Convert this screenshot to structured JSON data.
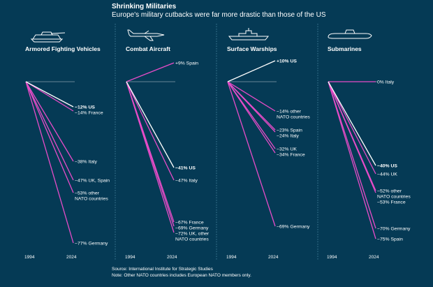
{
  "header": {
    "title": "Shrinking Militaries",
    "subtitle": "Europe's military cutbacks were far more drastic than those of the US"
  },
  "footer": {
    "source": "Source: International Institute for Strategic Studies",
    "note": "Note: Other NATO countries includes European NATO members only."
  },
  "colors": {
    "background": "#053a55",
    "us_line": "#ffffff",
    "europe_line": "#e74cc8",
    "baseline": "#8aa0ad",
    "divider": "#4d8aa5"
  },
  "icons": [
    "tank-icon",
    "aircraft-icon",
    "warship-icon",
    "submarine-icon"
  ],
  "chart_data": [
    {
      "type": "line",
      "title": "Armored Fighting Vehicles",
      "icon": "tank-icon",
      "x": [
        "1994",
        "2024"
      ],
      "unit": "% change 1994-2024",
      "series": [
        {
          "name": "US",
          "value": -12,
          "label": "−12% US",
          "highlight": true
        },
        {
          "name": "France",
          "value": -14,
          "label": "−14% France"
        },
        {
          "name": "Italy",
          "value": -38,
          "label": "−38% Italy"
        },
        {
          "name": "UK, Spain",
          "value": -47,
          "label": "−47% UK, Spain"
        },
        {
          "name": "other NATO countries",
          "value": -53,
          "label": "−53% other\nNATO countries"
        },
        {
          "name": "Germany",
          "value": -77,
          "label": "−77% Germany"
        }
      ]
    },
    {
      "type": "line",
      "title": "Combat Aircraft",
      "icon": "aircraft-icon",
      "x": [
        "1994",
        "2024"
      ],
      "unit": "% change 1994-2024",
      "series": [
        {
          "name": "Spain",
          "value": 9,
          "label": "+9% Spain"
        },
        {
          "name": "US",
          "value": -41,
          "label": "−41% US",
          "highlight": true
        },
        {
          "name": "Italy",
          "value": -47,
          "label": "−47% Italy"
        },
        {
          "name": "France",
          "value": -67,
          "label": "−67% France"
        },
        {
          "name": "Germany",
          "value": -69,
          "label": "−69% Germany"
        },
        {
          "name": "UK, other NATO countries",
          "value": -72,
          "label": "−72% UK, other\nNATO countries"
        }
      ]
    },
    {
      "type": "line",
      "title": "Surface Warships",
      "icon": "warship-icon",
      "x": [
        "1994",
        "2024"
      ],
      "unit": "% change 1994-2024",
      "series": [
        {
          "name": "US",
          "value": 10,
          "label": "+10% US",
          "highlight": true
        },
        {
          "name": "other NATO countries",
          "value": -14,
          "label": "−14% other\nNATO countries"
        },
        {
          "name": "Spain",
          "value": -23,
          "label": "−23% Spain"
        },
        {
          "name": "Italy",
          "value": -24,
          "label": "−24% Italy"
        },
        {
          "name": "UK",
          "value": -32,
          "label": "−32% UK"
        },
        {
          "name": "France",
          "value": -34,
          "label": "−34% France"
        },
        {
          "name": "Germany",
          "value": -69,
          "label": "−69% Germany"
        }
      ]
    },
    {
      "type": "line",
      "title": "Submarines",
      "icon": "submarine-icon",
      "x": [
        "1994",
        "2024"
      ],
      "unit": "% change 1994-2024",
      "series": [
        {
          "name": "Italy",
          "value": 0,
          "label": "0% Italy"
        },
        {
          "name": "US",
          "value": -40,
          "label": "−40% US",
          "highlight": true
        },
        {
          "name": "UK",
          "value": -44,
          "label": "−44% UK"
        },
        {
          "name": "other NATO countries",
          "value": -52,
          "label": "−52% other\nNATO countries"
        },
        {
          "name": "France",
          "value": -53,
          "label": "−53% France"
        },
        {
          "name": "Germany",
          "value": -70,
          "label": "−70% Germany"
        },
        {
          "name": "Spain",
          "value": -75,
          "label": "−75% Spain"
        }
      ]
    }
  ]
}
